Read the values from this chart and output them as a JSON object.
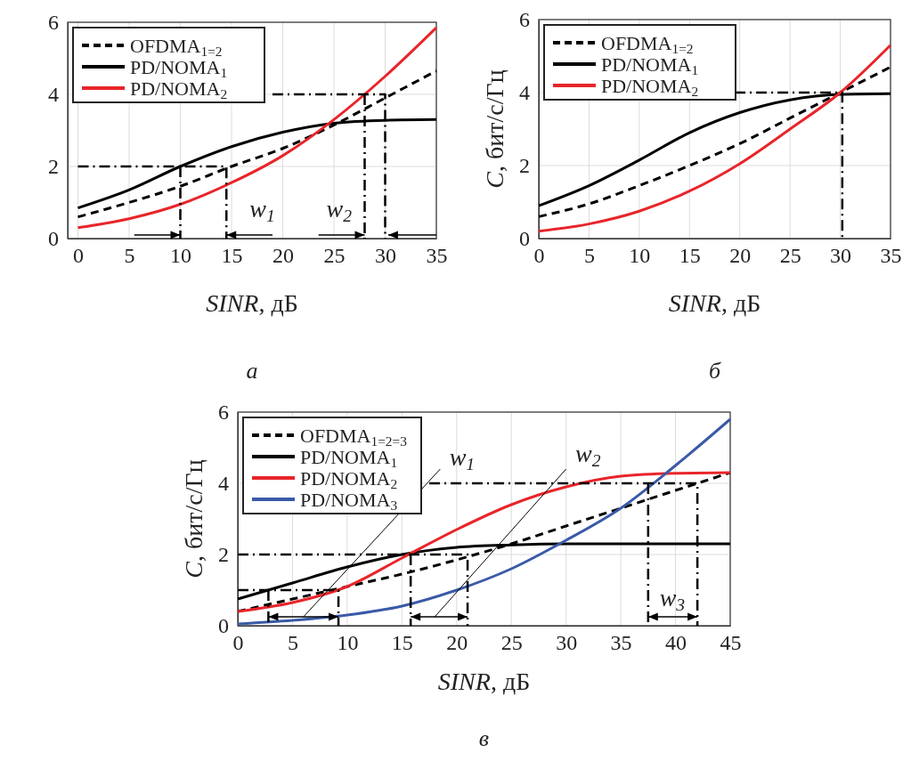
{
  "chart_data": [
    {
      "type": "line",
      "xlabel": "SINR, дБ",
      "xlim": [
        -1,
        35
      ],
      "xticks": [
        0,
        5,
        10,
        15,
        20,
        25,
        30,
        35
      ],
      "ylim": [
        0,
        6
      ],
      "yticks": [
        0,
        2,
        4,
        6
      ],
      "grid": true,
      "legend": "top left",
      "x": [
        0,
        5,
        10,
        15,
        20,
        25,
        30,
        35
      ],
      "series": [
        {
          "name": "OFDMA$_{1=2}$",
          "color": "#000000",
          "line_style": "dashed",
          "values": [
            0.6,
            1.0,
            1.45,
            2.0,
            2.5,
            3.15,
            3.9,
            4.65
          ]
        },
        {
          "name": "PD/NOMA$_{1}$",
          "color": "#000000",
          "line_style": "solid",
          "values": [
            0.85,
            1.35,
            2.0,
            2.55,
            2.95,
            3.2,
            3.28,
            3.3
          ]
        },
        {
          "name": "PD/NOMA$_{2}$",
          "color": "#e8252a",
          "line_style": "solid",
          "values": [
            0.3,
            0.55,
            0.95,
            1.55,
            2.3,
            3.3,
            4.5,
            5.85
          ]
        },
        {
          "color": "#000000",
          "line_style": "dashed",
          "x": [
            0,
            14.5,
            14.5
          ],
          "values": [
            2,
            2,
            0
          ]
        },
        {
          "color": "#000000",
          "line_style": "dashed",
          "x": [
            10,
            10
          ],
          "values": [
            2,
            0
          ]
        },
        {
          "color": "#000000",
          "line_style": "dashed",
          "x": [
            19,
            30,
            30
          ],
          "values": [
            4,
            4,
            0
          ]
        },
        {
          "color": "#000000",
          "line_style": "dashed",
          "x": [
            28,
            28
          ],
          "values": [
            4,
            0
          ]
        }
      ],
      "annotations": [
        "w$_{1}$",
        "w$_{2}$",
        "а"
      ]
    },
    {
      "type": "line",
      "xlabel": "SINR, дБ",
      "ylabel": "C, бит/с/Гц",
      "xlim": [
        0,
        35
      ],
      "xticks": [
        0,
        5,
        10,
        15,
        20,
        25,
        30,
        35
      ],
      "ylim": [
        0,
        6
      ],
      "yticks": [
        0,
        2,
        4,
        6
      ],
      "grid": true,
      "legend": "top left",
      "x": [
        0,
        5,
        10,
        15,
        20,
        25,
        30,
        35
      ],
      "series": [
        {
          "name": "OFDMA$_{1=2}$",
          "color": "#000000",
          "line_style": "dashed",
          "values": [
            0.6,
            0.95,
            1.45,
            2.0,
            2.6,
            3.3,
            4.0,
            4.7
          ]
        },
        {
          "name": "PD/NOMA$_{1}$",
          "color": "#000000",
          "line_style": "solid",
          "values": [
            0.9,
            1.45,
            2.15,
            2.9,
            3.45,
            3.8,
            3.95,
            3.97
          ]
        },
        {
          "name": "PD/NOMA$_{2}$",
          "color": "#e8252a",
          "line_style": "solid",
          "values": [
            0.2,
            0.4,
            0.75,
            1.3,
            2.05,
            3.0,
            4.0,
            5.3
          ]
        },
        {
          "color": "#000000",
          "line_style": "dashed",
          "x": [
            19.5,
            30.2,
            30.2
          ],
          "values": [
            4,
            4,
            0
          ]
        }
      ],
      "annotations": [
        "б"
      ]
    },
    {
      "type": "line",
      "xlabel": "SINR, дБ",
      "ylabel": "C, бит/с/Гц",
      "xlim": [
        0,
        45
      ],
      "xticks": [
        0,
        5,
        10,
        15,
        20,
        25,
        30,
        35,
        40,
        45
      ],
      "ylim": [
        0,
        6
      ],
      "yticks": [
        0,
        2,
        4,
        6
      ],
      "grid": true,
      "legend": "top left",
      "x": [
        0,
        5,
        10,
        15,
        20,
        25,
        30,
        35,
        40,
        45
      ],
      "series": [
        {
          "name": "OFDMA$_{1=2=3}$",
          "color": "#000000",
          "line_style": "dashed",
          "values": [
            0.4,
            0.75,
            1.1,
            1.45,
            1.85,
            2.3,
            2.8,
            3.3,
            3.8,
            4.3
          ]
        },
        {
          "name": "PD/NOMA$_{1}$",
          "color": "#000000",
          "line_style": "solid",
          "values": [
            0.75,
            1.2,
            1.65,
            2.0,
            2.2,
            2.27,
            2.3,
            2.3,
            2.3,
            2.3
          ]
        },
        {
          "name": "PD/NOMA$_{2}$",
          "color": "#e8252a",
          "line_style": "solid",
          "values": [
            0.4,
            0.65,
            1.1,
            1.9,
            2.7,
            3.4,
            3.9,
            4.2,
            4.28,
            4.3
          ]
        },
        {
          "name": "PD/NOMA$_{3}$",
          "color": "#3a5aa8",
          "line_style": "solid",
          "values": [
            0.05,
            0.15,
            0.3,
            0.55,
            1.0,
            1.6,
            2.4,
            3.3,
            4.5,
            5.8
          ]
        },
        {
          "color": "#000000",
          "line_style": "dashed",
          "x": [
            17.5,
            42,
            42
          ],
          "values": [
            4,
            4,
            0
          ]
        },
        {
          "color": "#000000",
          "line_style": "dashed",
          "x": [
            37.5,
            37.5
          ],
          "values": [
            4,
            0
          ]
        },
        {
          "color": "#000000",
          "line_style": "dashed",
          "x": [
            0,
            21,
            21
          ],
          "values": [
            2,
            2,
            0
          ]
        },
        {
          "color": "#000000",
          "line_style": "dashed",
          "x": [
            15.8,
            15.8
          ],
          "values": [
            2,
            0
          ]
        },
        {
          "color": "#000000",
          "line_style": "dashed",
          "x": [
            0,
            9.2,
            9.2
          ],
          "values": [
            1,
            1,
            0
          ]
        },
        {
          "color": "#000000",
          "line_style": "dashed",
          "x": [
            2.8,
            2.8
          ],
          "values": [
            1,
            0
          ]
        },
        {
          "color": "#000000",
          "line_style": "solid",
          "x": [
            6,
            18.5
          ],
          "values": [
            0.25,
            4.4
          ]
        },
        {
          "color": "#000000",
          "line_style": "solid",
          "x": [
            18,
            30
          ],
          "values": [
            0.25,
            4.4
          ]
        }
      ],
      "annotations": [
        "w$_{1}$",
        "w$_{2}$",
        "w$_{3}$",
        "в"
      ]
    }
  ]
}
